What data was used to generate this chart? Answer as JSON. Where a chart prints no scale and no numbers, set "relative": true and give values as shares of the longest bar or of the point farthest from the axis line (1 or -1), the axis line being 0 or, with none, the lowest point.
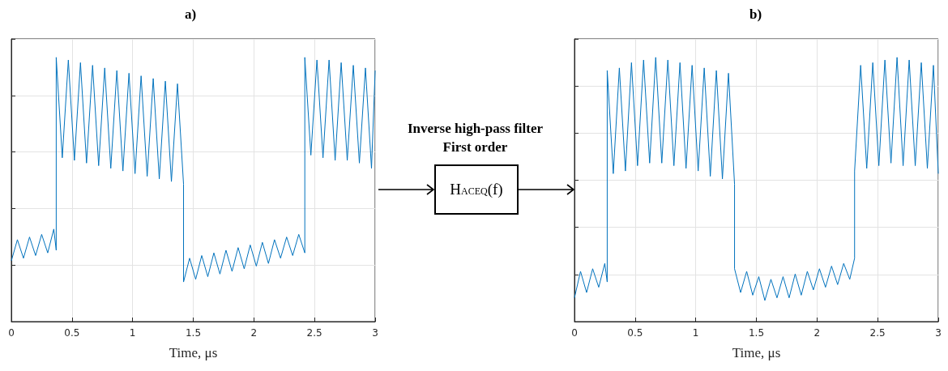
{
  "chart_data": [
    {
      "type": "line",
      "title": "a)",
      "xlabel": "Time, μs",
      "relative": true,
      "grid": true,
      "tick_labels": "x",
      "xlim": [
        0,
        3
      ],
      "xticks": [
        0,
        0.5,
        1,
        1.5,
        2,
        2.5,
        3
      ],
      "series": [
        {
          "color": "#0072bd",
          "x": [
            0,
            0.05,
            0.1,
            0.15,
            0.2,
            0.25,
            0.3,
            0.35,
            0.37,
            0.37,
            0.42,
            0.47,
            0.52,
            0.57,
            0.62,
            0.67,
            0.72,
            0.77,
            0.82,
            0.87,
            0.92,
            0.97,
            1.02,
            1.07,
            1.12,
            1.17,
            1.22,
            1.27,
            1.32,
            1.37,
            1.42,
            1.42,
            1.47,
            1.52,
            1.57,
            1.62,
            1.67,
            1.72,
            1.77,
            1.82,
            1.87,
            1.92,
            1.97,
            2.02,
            2.07,
            2.12,
            2.17,
            2.22,
            2.27,
            2.32,
            2.37,
            2.42,
            2.42,
            2.47,
            2.52,
            2.57,
            2.62,
            2.67,
            2.72,
            2.77,
            2.82,
            2.87,
            2.92,
            2.97,
            3
          ],
          "values": [
            0.23,
            0.31,
            0.24,
            0.32,
            0.25,
            0.33,
            0.26,
            0.35,
            0.27,
            1.0,
            0.62,
            0.99,
            0.61,
            0.98,
            0.6,
            0.97,
            0.59,
            0.96,
            0.58,
            0.95,
            0.57,
            0.94,
            0.56,
            0.93,
            0.55,
            0.92,
            0.54,
            0.91,
            0.53,
            0.9,
            0.52,
            0.15,
            0.24,
            0.16,
            0.25,
            0.17,
            0.26,
            0.18,
            0.27,
            0.19,
            0.28,
            0.2,
            0.29,
            0.21,
            0.3,
            0.22,
            0.31,
            0.24,
            0.32,
            0.25,
            0.33,
            0.26,
            1.0,
            0.63,
            0.99,
            0.62,
            0.99,
            0.61,
            0.98,
            0.61,
            0.97,
            0.6,
            0.96,
            0.58,
            0.95
          ]
        }
      ]
    },
    {
      "type": "other",
      "title": "Inverse high-pass filter",
      "subtitle": "First order",
      "annotations": [
        "H$_{ACEQ}$(f)"
      ]
    },
    {
      "type": "line",
      "title": "b)",
      "xlabel": "Time, μs",
      "relative": true,
      "grid": true,
      "tick_labels": "x",
      "xlim": [
        0,
        3
      ],
      "xticks": [
        0,
        0.5,
        1,
        1.5,
        2,
        2.5,
        3
      ],
      "series": [
        {
          "color": "#0072bd",
          "x": [
            0,
            0.05,
            0.1,
            0.15,
            0.2,
            0.25,
            0.27,
            0.27,
            0.32,
            0.37,
            0.42,
            0.47,
            0.52,
            0.57,
            0.62,
            0.67,
            0.72,
            0.77,
            0.82,
            0.87,
            0.92,
            0.97,
            1.02,
            1.07,
            1.12,
            1.17,
            1.22,
            1.27,
            1.32,
            1.32,
            1.37,
            1.42,
            1.47,
            1.52,
            1.57,
            1.62,
            1.67,
            1.72,
            1.77,
            1.82,
            1.87,
            1.92,
            1.97,
            2.02,
            2.07,
            2.12,
            2.17,
            2.22,
            2.27,
            2.31,
            2.31,
            2.36,
            2.41,
            2.46,
            2.51,
            2.56,
            2.61,
            2.66,
            2.71,
            2.76,
            2.81,
            2.86,
            2.91,
            2.96,
            3
          ],
          "values": [
            0.09,
            0.19,
            0.11,
            0.2,
            0.13,
            0.22,
            0.15,
            0.95,
            0.56,
            0.96,
            0.57,
            0.98,
            0.59,
            0.99,
            0.6,
            1.0,
            0.6,
            0.99,
            0.59,
            0.98,
            0.58,
            0.97,
            0.57,
            0.96,
            0.55,
            0.95,
            0.54,
            0.94,
            0.52,
            0.2,
            0.11,
            0.19,
            0.1,
            0.17,
            0.08,
            0.16,
            0.09,
            0.17,
            0.09,
            0.18,
            0.1,
            0.19,
            0.12,
            0.2,
            0.13,
            0.21,
            0.14,
            0.22,
            0.16,
            0.24,
            0.57,
            0.97,
            0.58,
            0.98,
            0.59,
            0.99,
            0.6,
            1.0,
            0.59,
            0.99,
            0.59,
            0.98,
            0.58,
            0.97,
            0.56
          ]
        }
      ]
    }
  ]
}
